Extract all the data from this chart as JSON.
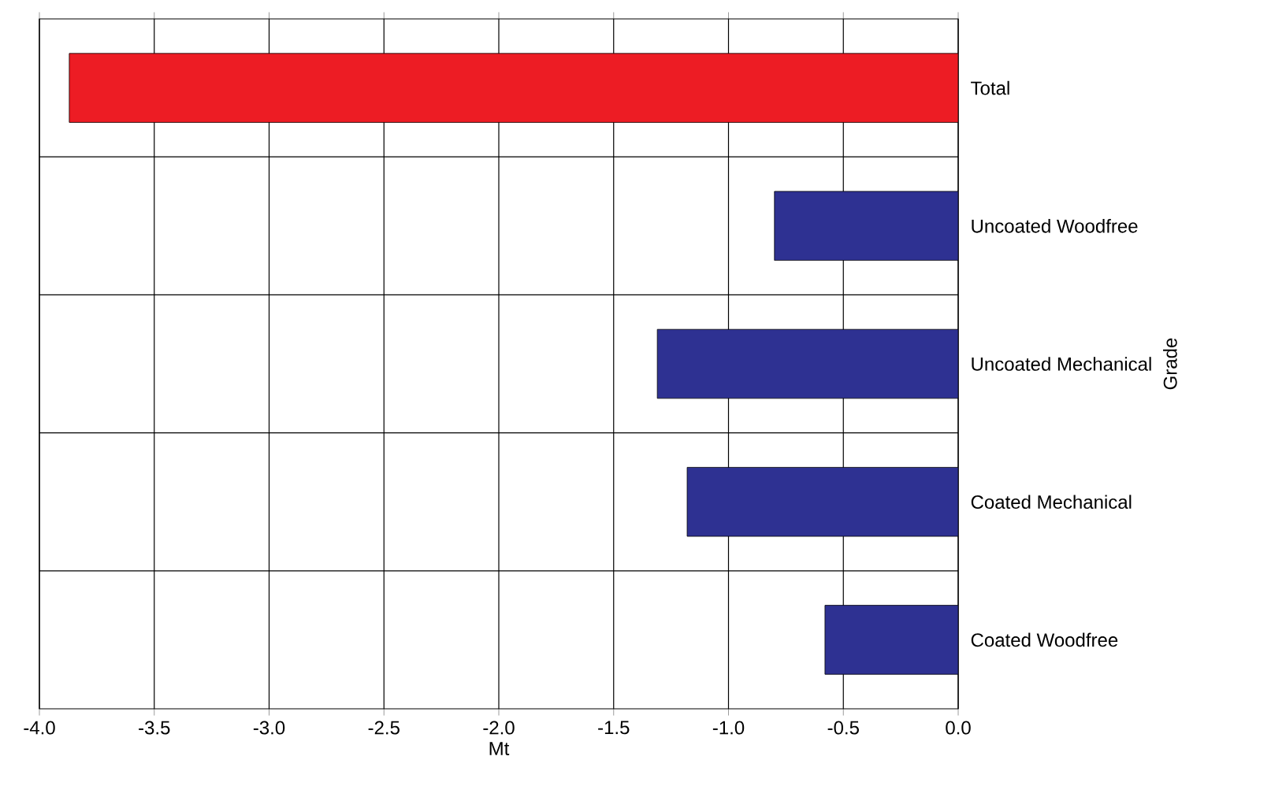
{
  "chart_data": {
    "type": "bar",
    "orientation": "horizontal",
    "categories": [
      "Total",
      "Uncoated Woodfree",
      "Uncoated Mechanical",
      "Coated Mechanical",
      "Coated Woodfree"
    ],
    "values": [
      -3.87,
      -0.8,
      -1.31,
      -1.18,
      -0.58
    ],
    "colors": [
      "#ed1c24",
      "#2e3192",
      "#2e3192",
      "#2e3192",
      "#2e3192"
    ],
    "xlim": [
      -4.0,
      0.0
    ],
    "xticks": [
      {
        "value": -4.0,
        "label": "-4.0"
      },
      {
        "value": -3.5,
        "label": "-3.5"
      },
      {
        "value": -3.0,
        "label": "-3.0"
      },
      {
        "value": -2.5,
        "label": "-2.5"
      },
      {
        "value": -2.0,
        "label": "-2.0"
      },
      {
        "value": -1.5,
        "label": "-1.5"
      },
      {
        "value": -1.0,
        "label": "-1.0"
      },
      {
        "value": -0.5,
        "label": "-0.5"
      },
      {
        "value": 0.0,
        "label": "0.0"
      }
    ],
    "xlabel": "Mt",
    "ylabel": "Grade",
    "grid": true
  }
}
